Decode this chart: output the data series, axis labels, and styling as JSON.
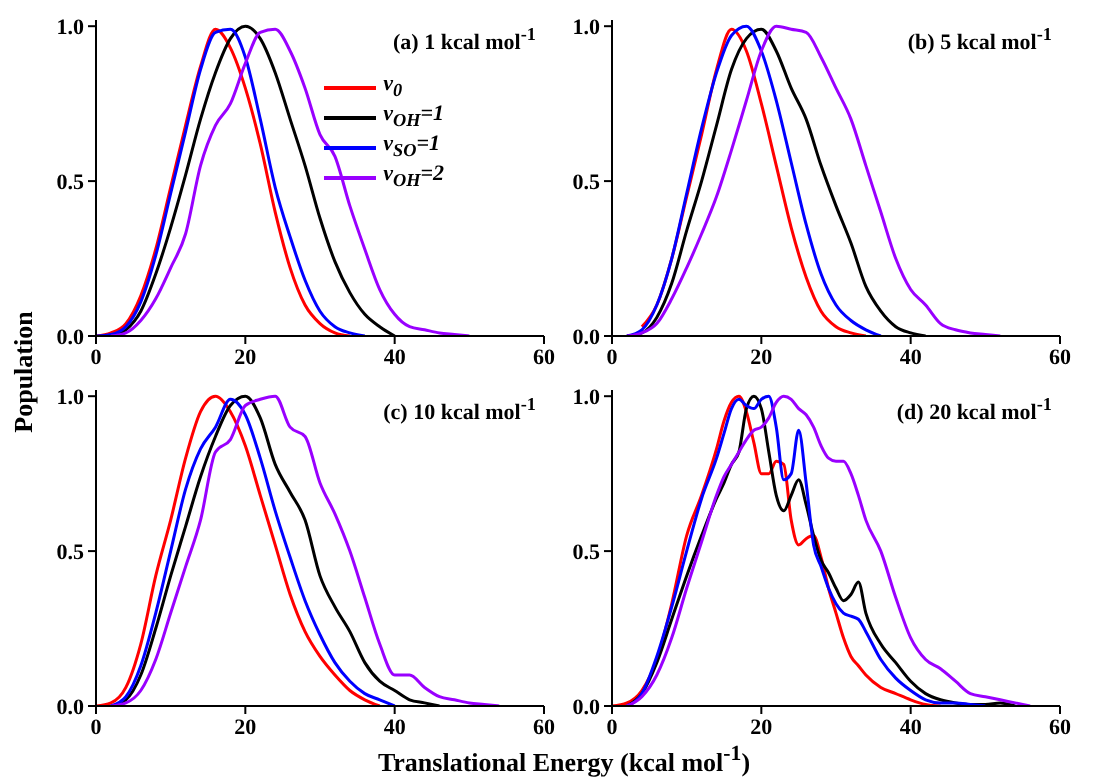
{
  "chart_data": [
    {
      "type": "line",
      "title": "(a) 1 kcal mol$^{-1}$",
      "ylabel": "Population",
      "legend": "top right",
      "line_style": "solid",
      "marker": "none",
      "xlim": [
        0,
        60
      ],
      "xticks": [
        0,
        20,
        40,
        60
      ],
      "ylim": [
        0,
        1.02
      ],
      "yticks": [
        {
          "value": 0,
          "label": "0.0"
        },
        {
          "value": 0.5,
          "label": "0.5"
        },
        {
          "value": 1,
          "label": "1.0"
        }
      ],
      "x": [
        0,
        2,
        4,
        6,
        8,
        10,
        12,
        14,
        16,
        18,
        20,
        22,
        24,
        26,
        28,
        30,
        32,
        34,
        36,
        38,
        40,
        42,
        44,
        46,
        48,
        50
      ],
      "series": [
        {
          "name": "ν$_{0}$",
          "color": "#ff0000",
          "values": [
            0,
            0.01,
            0.04,
            0.13,
            0.28,
            0.48,
            0.68,
            0.87,
            0.99,
            0.93,
            0.8,
            0.62,
            0.4,
            0.22,
            0.1,
            0.04,
            0.01,
            0,
            null,
            null,
            null,
            null,
            null,
            null,
            null,
            null
          ]
        },
        {
          "name": "ν$_{OH}$=1",
          "color": "#000000",
          "values": [
            null,
            0,
            0.02,
            0.08,
            0.2,
            0.35,
            0.52,
            0.7,
            0.85,
            0.96,
            1,
            0.96,
            0.85,
            0.7,
            0.55,
            0.38,
            0.24,
            0.14,
            0.07,
            0.03,
            0,
            null,
            null,
            null,
            null,
            null
          ]
        },
        {
          "name": "ν$_{SO}$=1",
          "color": "#0000ff",
          "values": [
            0,
            0.005,
            0.03,
            0.11,
            0.26,
            0.46,
            0.66,
            0.86,
            0.98,
            0.99,
            0.9,
            0.7,
            0.48,
            0.32,
            0.18,
            0.08,
            0.03,
            0.01,
            0,
            null,
            null,
            null,
            null,
            null,
            null,
            null
          ]
        },
        {
          "name": "ν$_{OH}$=2",
          "color": "#9900ff",
          "values": [
            null,
            0,
            0.01,
            0.05,
            0.12,
            0.22,
            0.33,
            0.55,
            0.68,
            0.75,
            0.88,
            0.98,
            0.99,
            0.92,
            0.8,
            0.65,
            0.58,
            0.42,
            0.28,
            0.15,
            0.07,
            0.03,
            0.02,
            0.01,
            0.005,
            0
          ]
        }
      ]
    },
    {
      "type": "line",
      "title": "(b) 5 kcal mol$^{-1}$",
      "line_style": "solid",
      "marker": "none",
      "xlim": [
        0,
        60
      ],
      "xticks": [
        0,
        20,
        40,
        60
      ],
      "ylim": [
        0,
        1.02
      ],
      "yticks": [
        {
          "value": 0,
          "label": "0.0"
        },
        {
          "value": 0.5,
          "label": "0.5"
        },
        {
          "value": 1,
          "label": "1.0"
        }
      ],
      "x": [
        2,
        4,
        6,
        8,
        10,
        12,
        14,
        16,
        18,
        20,
        22,
        24,
        26,
        28,
        30,
        32,
        34,
        36,
        38,
        40,
        42,
        44,
        46,
        48,
        50,
        52
      ],
      "series": [
        {
          "color": "#ff0000",
          "values": [
            null,
            0.03,
            0.1,
            0.25,
            0.45,
            0.65,
            0.86,
            0.99,
            0.92,
            0.75,
            0.55,
            0.35,
            0.19,
            0.08,
            0.03,
            0.01,
            0,
            null,
            null,
            null,
            null,
            null,
            null,
            null,
            null,
            null
          ]
        },
        {
          "color": "#000000",
          "values": [
            0,
            0.01,
            0.06,
            0.17,
            0.34,
            0.5,
            0.68,
            0.86,
            0.96,
            0.99,
            0.92,
            0.8,
            0.7,
            0.55,
            0.42,
            0.3,
            0.16,
            0.08,
            0.03,
            0.01,
            0,
            null,
            null,
            null,
            null,
            null
          ]
        },
        {
          "color": "#0000ff",
          "values": [
            0,
            0.02,
            0.1,
            0.25,
            0.46,
            0.67,
            0.85,
            0.97,
            1,
            0.92,
            0.76,
            0.56,
            0.36,
            0.2,
            0.1,
            0.05,
            0.02,
            0,
            null,
            null,
            null,
            null,
            null,
            null,
            null,
            null
          ]
        },
        {
          "color": "#9900ff",
          "values": [
            0,
            0.01,
            0.04,
            0.12,
            0.22,
            0.33,
            0.45,
            0.6,
            0.76,
            0.92,
            1,
            0.99,
            0.98,
            0.9,
            0.8,
            0.7,
            0.55,
            0.4,
            0.25,
            0.15,
            0.1,
            0.04,
            0.02,
            0.01,
            0.005,
            0
          ]
        }
      ]
    },
    {
      "type": "line",
      "title": "(c) 10 kcal mol$^{-1}$",
      "xlabel": "Translational Energy (kcal mol$^{-1}$)",
      "line_style": "solid",
      "marker": "none",
      "xlim": [
        0,
        60
      ],
      "xticks": [
        0,
        20,
        40,
        60
      ],
      "ylim": [
        0,
        1.02
      ],
      "yticks": [
        {
          "value": 0,
          "label": "0.0"
        },
        {
          "value": 0.5,
          "label": "0.5"
        },
        {
          "value": 1,
          "label": "1.0"
        }
      ],
      "x": [
        0,
        2,
        4,
        6,
        8,
        10,
        12,
        14,
        16,
        18,
        20,
        22,
        24,
        26,
        28,
        30,
        32,
        34,
        36,
        38,
        40,
        42,
        44,
        46,
        48,
        50,
        52,
        54
      ],
      "series": [
        {
          "color": "#ff0000",
          "values": [
            0,
            0.01,
            0.06,
            0.2,
            0.42,
            0.6,
            0.8,
            0.95,
            1,
            0.95,
            0.84,
            0.68,
            0.52,
            0.36,
            0.24,
            0.16,
            0.1,
            0.05,
            0.02,
            0,
            null,
            null,
            null,
            null,
            null,
            null,
            null,
            null
          ]
        },
        {
          "color": "#000000",
          "values": [
            null,
            0,
            0.02,
            0.1,
            0.25,
            0.42,
            0.58,
            0.74,
            0.87,
            0.97,
            1,
            0.93,
            0.78,
            0.69,
            0.6,
            0.42,
            0.32,
            0.24,
            0.14,
            0.08,
            0.05,
            0.02,
            0.01,
            0,
            null,
            null,
            null,
            null
          ]
        },
        {
          "color": "#0000ff",
          "values": [
            null,
            0,
            0.03,
            0.13,
            0.3,
            0.5,
            0.7,
            0.83,
            0.9,
            0.99,
            0.94,
            0.8,
            0.63,
            0.48,
            0.34,
            0.23,
            0.14,
            0.08,
            0.04,
            0.02,
            0,
            null,
            null,
            null,
            null,
            null,
            null,
            null
          ]
        },
        {
          "color": "#9900ff",
          "values": [
            null,
            0,
            0.01,
            0.05,
            0.15,
            0.3,
            0.45,
            0.6,
            0.82,
            0.86,
            0.97,
            0.99,
            1,
            0.9,
            0.87,
            0.72,
            0.62,
            0.5,
            0.35,
            0.2,
            0.1,
            0.1,
            0.06,
            0.03,
            0.02,
            0.01,
            0.005,
            0
          ]
        }
      ]
    },
    {
      "type": "line",
      "title": "(d) 20 kcal mol$^{-1}$",
      "line_style": "solid",
      "marker": "none",
      "xlim": [
        0,
        60
      ],
      "xticks": [
        0,
        20,
        40,
        60
      ],
      "ylim": [
        0,
        1.02
      ],
      "yticks": [
        {
          "value": 0,
          "label": "0.0"
        },
        {
          "value": 0.5,
          "label": "0.5"
        },
        {
          "value": 1,
          "label": "1.0"
        }
      ],
      "x": [
        0,
        2,
        4,
        6,
        8,
        10,
        12,
        14,
        15,
        16,
        17,
        18,
        19,
        20,
        21,
        22,
        23,
        24,
        25,
        26,
        27,
        28,
        29,
        30,
        31,
        32,
        33,
        34,
        36,
        38,
        40,
        42,
        44,
        46,
        48,
        50,
        52,
        54,
        56
      ],
      "series": [
        {
          "color": "#ff0000",
          "values": [
            0,
            0.01,
            0.05,
            0.15,
            0.33,
            0.55,
            0.68,
            0.83,
            0.92,
            0.98,
            1,
            0.95,
            0.85,
            0.75,
            0.75,
            0.79,
            0.78,
            0.6,
            0.52,
            0.54,
            0.55,
            0.48,
            0.38,
            0.3,
            0.22,
            0.16,
            0.13,
            0.1,
            0.06,
            0.04,
            0.02,
            0.005,
            0,
            null,
            null,
            null,
            null,
            null,
            null
          ]
        },
        {
          "color": "#000000",
          "values": [
            null,
            0,
            0.04,
            0.14,
            0.28,
            0.42,
            0.55,
            0.67,
            0.72,
            0.78,
            0.82,
            0.96,
            1,
            0.96,
            0.82,
            0.68,
            0.63,
            0.68,
            0.73,
            0.65,
            0.55,
            0.47,
            0.43,
            0.38,
            0.34,
            0.36,
            0.4,
            0.3,
            0.2,
            0.14,
            0.08,
            0.04,
            0.02,
            0.01,
            0.005,
            0.005,
            0.01,
            0,
            null
          ]
        },
        {
          "color": "#0000ff",
          "values": [
            null,
            0,
            0.04,
            0.16,
            0.32,
            0.5,
            0.67,
            0.8,
            0.88,
            0.96,
            0.99,
            0.97,
            0.96,
            0.99,
            1,
            0.9,
            0.73,
            0.75,
            0.89,
            0.72,
            0.52,
            0.45,
            0.38,
            0.33,
            0.3,
            0.29,
            0.28,
            0.24,
            0.15,
            0.09,
            0.05,
            0.02,
            0.01,
            0.01,
            0.005,
            0,
            null,
            null,
            null
          ]
        },
        {
          "color": "#9900ff",
          "values": [
            null,
            0,
            0.03,
            0.1,
            0.22,
            0.38,
            0.53,
            0.68,
            0.74,
            0.78,
            0.82,
            0.86,
            0.89,
            0.9,
            0.93,
            0.98,
            1,
            0.99,
            0.96,
            0.94,
            0.9,
            0.84,
            0.8,
            0.79,
            0.79,
            0.75,
            0.68,
            0.6,
            0.5,
            0.35,
            0.22,
            0.15,
            0.12,
            0.08,
            0.04,
            0.03,
            0.02,
            0.01,
            0
          ]
        }
      ]
    }
  ]
}
